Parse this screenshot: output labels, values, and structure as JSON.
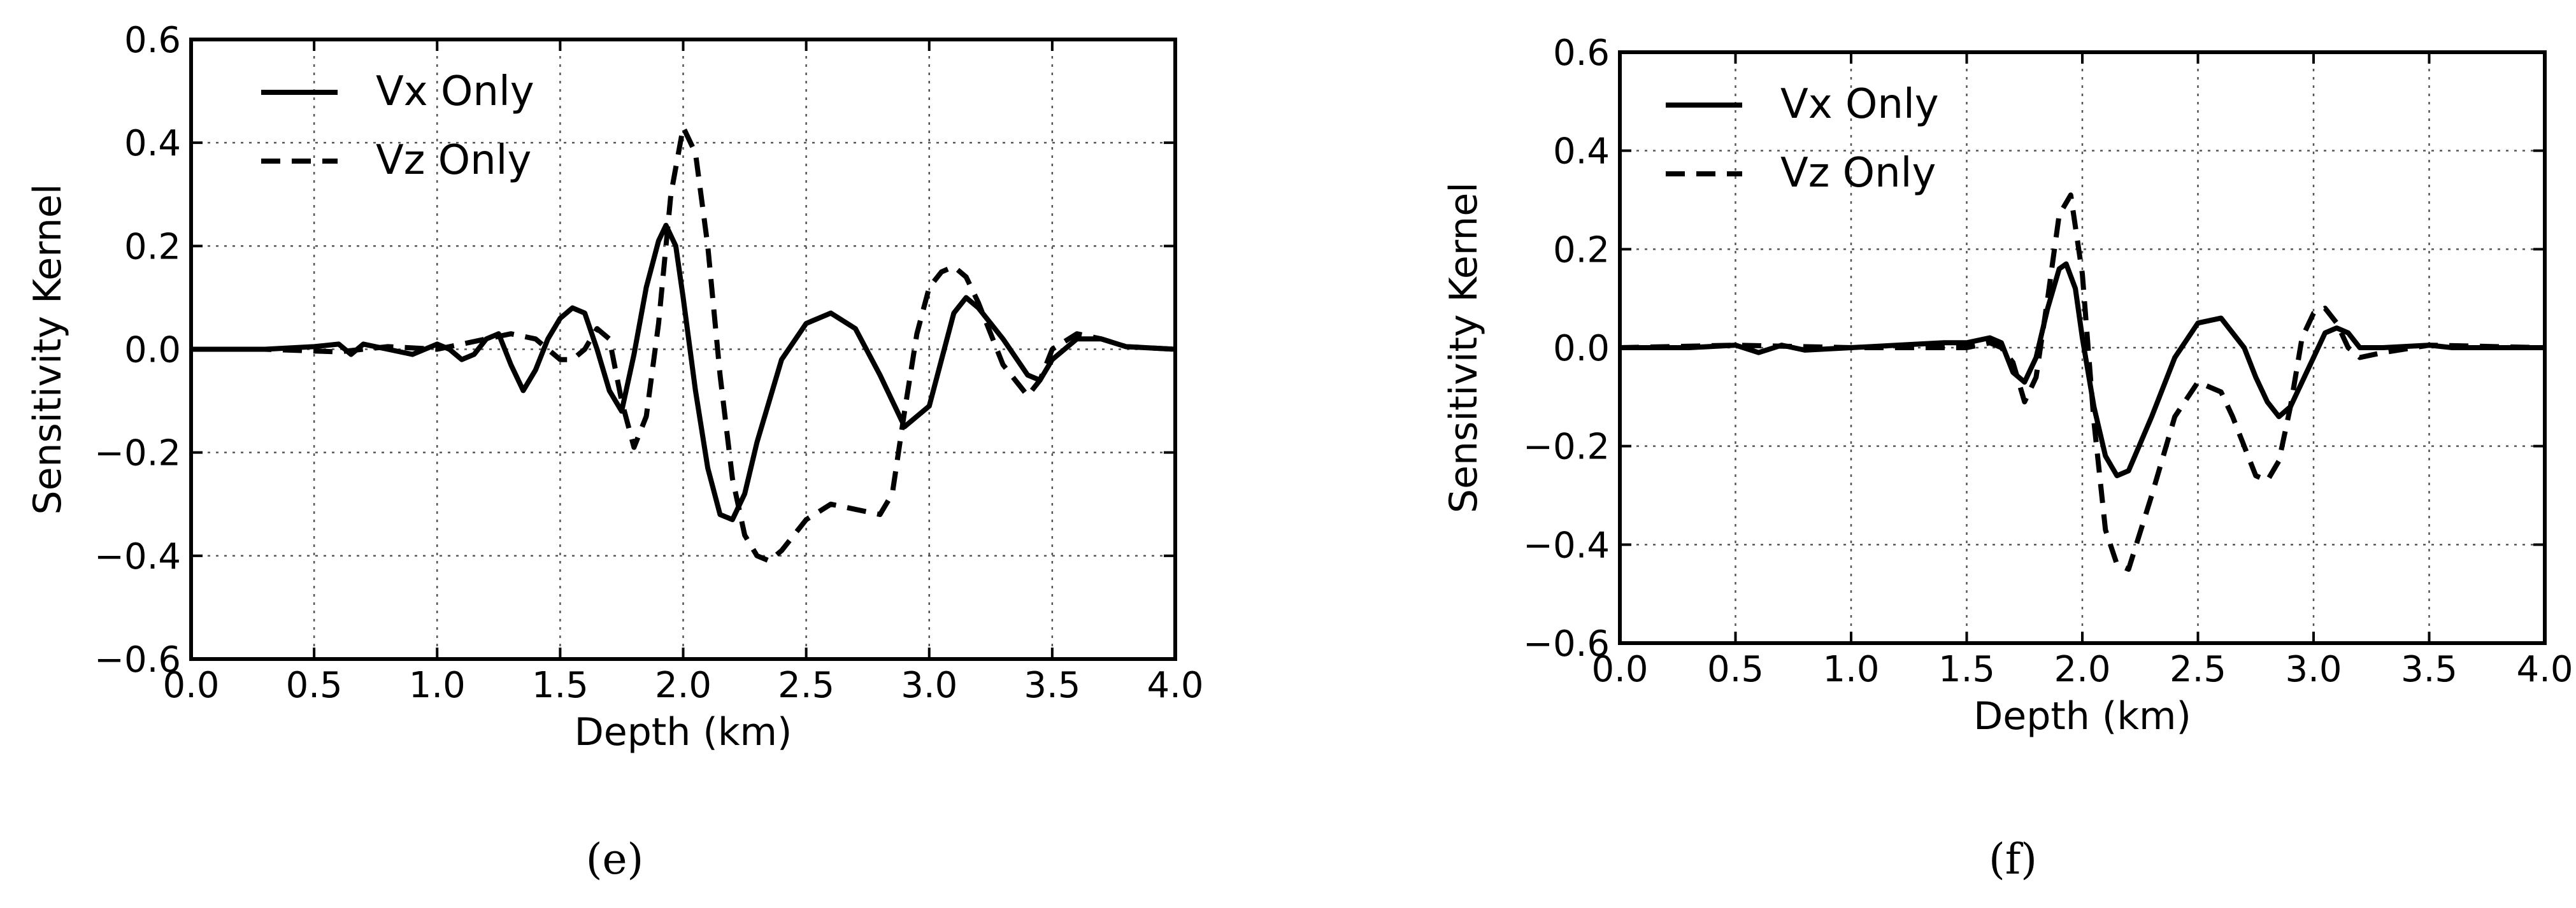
{
  "chart_data": [
    {
      "type": "line",
      "panel_label": "e",
      "xlabel": "Depth (km)",
      "ylabel": "Sensitivity Kernel",
      "xlim": [
        0.0,
        4.0
      ],
      "ylim": [
        -0.6,
        0.6
      ],
      "xticks": [
        "0.0",
        "0.5",
        "1.0",
        "1.5",
        "2.0",
        "2.5",
        "3.0",
        "3.5",
        "4.0"
      ],
      "yticks": [
        "0.6",
        "0.4",
        "0.2",
        "0.0",
        "−0.2",
        "−0.4",
        "−0.6"
      ],
      "grid": true,
      "legend_position": "top-left",
      "series": [
        {
          "name": "Vx Only",
          "style": "solid",
          "x": [
            0.0,
            0.3,
            0.5,
            0.6,
            0.65,
            0.7,
            0.8,
            0.9,
            1.0,
            1.05,
            1.1,
            1.15,
            1.2,
            1.25,
            1.3,
            1.35,
            1.4,
            1.45,
            1.5,
            1.55,
            1.6,
            1.65,
            1.7,
            1.75,
            1.8,
            1.85,
            1.9,
            1.93,
            1.97,
            2.0,
            2.05,
            2.1,
            2.15,
            2.2,
            2.25,
            2.3,
            2.4,
            2.5,
            2.6,
            2.7,
            2.8,
            2.9,
            3.0,
            3.05,
            3.1,
            3.15,
            3.2,
            3.3,
            3.4,
            3.45,
            3.5,
            3.6,
            3.7,
            3.8,
            4.0
          ],
          "y": [
            0.0,
            0.0,
            0.005,
            0.01,
            -0.01,
            0.01,
            0.0,
            -0.01,
            0.01,
            0.0,
            -0.02,
            -0.01,
            0.02,
            0.03,
            -0.03,
            -0.08,
            -0.04,
            0.02,
            0.06,
            0.08,
            0.07,
            0.0,
            -0.08,
            -0.12,
            -0.01,
            0.12,
            0.21,
            0.24,
            0.2,
            0.1,
            -0.08,
            -0.23,
            -0.32,
            -0.33,
            -0.28,
            -0.18,
            -0.02,
            0.05,
            0.07,
            0.04,
            -0.05,
            -0.15,
            -0.11,
            -0.02,
            0.07,
            0.1,
            0.08,
            0.02,
            -0.05,
            -0.06,
            -0.02,
            0.02,
            0.02,
            0.005,
            0.0
          ]
        },
        {
          "name": "Vz Only",
          "style": "dashed",
          "x": [
            0.0,
            0.3,
            0.6,
            0.8,
            1.0,
            1.1,
            1.2,
            1.3,
            1.4,
            1.5,
            1.55,
            1.6,
            1.65,
            1.7,
            1.75,
            1.8,
            1.85,
            1.9,
            1.95,
            2.0,
            2.05,
            2.1,
            2.15,
            2.2,
            2.25,
            2.3,
            2.35,
            2.4,
            2.5,
            2.6,
            2.7,
            2.8,
            2.85,
            2.9,
            2.95,
            3.0,
            3.05,
            3.1,
            3.15,
            3.2,
            3.3,
            3.4,
            3.45,
            3.5,
            3.6,
            3.7,
            3.8,
            4.0
          ],
          "y": [
            0.0,
            0.0,
            -0.005,
            0.005,
            0.0,
            0.01,
            0.02,
            0.03,
            0.02,
            -0.02,
            -0.02,
            0.0,
            0.04,
            0.02,
            -0.1,
            -0.19,
            -0.13,
            0.05,
            0.3,
            0.43,
            0.38,
            0.2,
            -0.05,
            -0.25,
            -0.36,
            -0.4,
            -0.41,
            -0.39,
            -0.33,
            -0.3,
            -0.31,
            -0.32,
            -0.28,
            -0.12,
            0.03,
            0.12,
            0.15,
            0.16,
            0.14,
            0.09,
            -0.03,
            -0.09,
            -0.06,
            0.0,
            0.03,
            0.02,
            0.005,
            0.0
          ]
        }
      ]
    },
    {
      "type": "line",
      "panel_label": "f",
      "xlabel": "Depth (km)",
      "ylabel": "Sensitivity Kernel",
      "xlim": [
        0.0,
        4.0
      ],
      "ylim": [
        -0.6,
        0.6
      ],
      "xticks": [
        "0.0",
        "0.5",
        "1.0",
        "1.5",
        "2.0",
        "2.5",
        "3.0",
        "3.5",
        "4.0"
      ],
      "yticks": [
        "0.6",
        "0.4",
        "0.2",
        "0.0",
        "−0.2",
        "−0.4",
        "−0.6"
      ],
      "grid": true,
      "legend_position": "top-left",
      "series": [
        {
          "name": "Vx Only",
          "style": "solid",
          "x": [
            0.0,
            0.3,
            0.5,
            0.6,
            0.7,
            0.8,
            1.0,
            1.2,
            1.4,
            1.5,
            1.6,
            1.65,
            1.7,
            1.75,
            1.8,
            1.85,
            1.9,
            1.93,
            1.97,
            2.0,
            2.05,
            2.1,
            2.15,
            2.2,
            2.3,
            2.4,
            2.5,
            2.6,
            2.7,
            2.75,
            2.8,
            2.85,
            2.9,
            3.0,
            3.05,
            3.1,
            3.15,
            3.2,
            3.3,
            3.5,
            3.6,
            4.0
          ],
          "y": [
            0.0,
            0.0,
            0.005,
            -0.01,
            0.005,
            -0.005,
            0.0,
            0.005,
            0.01,
            0.01,
            0.02,
            0.01,
            -0.05,
            -0.07,
            -0.02,
            0.08,
            0.16,
            0.17,
            0.12,
            0.02,
            -0.12,
            -0.22,
            -0.26,
            -0.25,
            -0.14,
            -0.02,
            0.05,
            0.06,
            0.0,
            -0.06,
            -0.11,
            -0.14,
            -0.12,
            -0.02,
            0.03,
            0.04,
            0.03,
            0.0,
            0.0,
            0.005,
            0.0,
            0.0
          ]
        },
        {
          "name": "Vz Only",
          "style": "dashed",
          "x": [
            0.0,
            0.5,
            1.0,
            1.5,
            1.6,
            1.65,
            1.7,
            1.75,
            1.8,
            1.85,
            1.9,
            1.95,
            2.0,
            2.05,
            2.1,
            2.15,
            2.2,
            2.3,
            2.4,
            2.5,
            2.6,
            2.65,
            2.7,
            2.75,
            2.8,
            2.85,
            2.9,
            2.95,
            3.0,
            3.05,
            3.1,
            3.15,
            3.2,
            3.3,
            3.5,
            4.0
          ],
          "y": [
            0.0,
            0.005,
            0.0,
            0.0,
            0.01,
            0.0,
            -0.03,
            -0.11,
            -0.06,
            0.1,
            0.27,
            0.31,
            0.15,
            -0.15,
            -0.37,
            -0.44,
            -0.45,
            -0.3,
            -0.14,
            -0.07,
            -0.09,
            -0.14,
            -0.2,
            -0.26,
            -0.27,
            -0.23,
            -0.12,
            0.02,
            0.07,
            0.08,
            0.05,
            0.0,
            -0.02,
            -0.01,
            0.005,
            0.0
          ]
        }
      ]
    }
  ]
}
